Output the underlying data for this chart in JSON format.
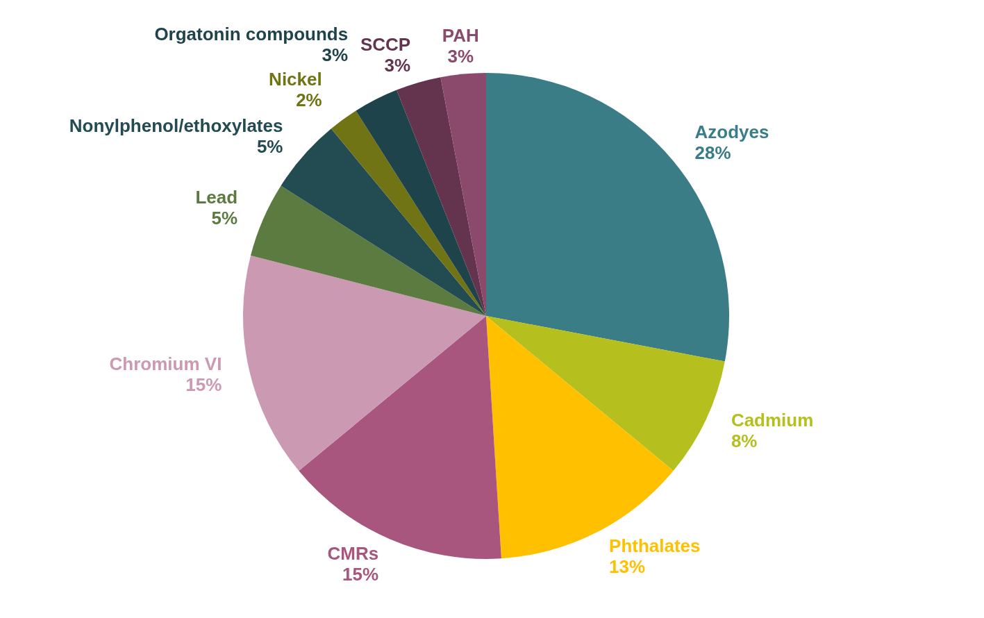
{
  "chart_data": {
    "type": "pie",
    "categories": [
      "Azodyes",
      "Cadmium",
      "Phthalates",
      "CMRs",
      "Chromium VI",
      "Lead",
      "Nonylphenol/ethoxylates",
      "Nickel",
      "Orgatonin compounds",
      "SCCP",
      "PAH"
    ],
    "values": [
      28,
      8,
      13,
      15,
      15,
      5,
      5,
      2,
      3,
      3,
      3
    ],
    "value_labels": [
      "28%",
      "8%",
      "13%",
      "15%",
      "15%",
      "5%",
      "5%",
      "2%",
      "3%",
      "3%",
      "3%"
    ],
    "colors": [
      "#3a7d87",
      "#b5bf1d",
      "#ffc000",
      "#a8567e",
      "#cc99b3",
      "#5b7b40",
      "#234b52",
      "#717414",
      "#1f434b",
      "#64344e",
      "#8b4a6c"
    ]
  }
}
